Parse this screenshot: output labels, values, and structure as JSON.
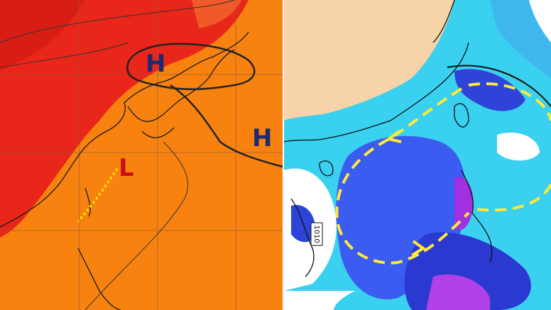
{
  "left_map": {
    "high_1": "H",
    "high_2": "H",
    "low": "L"
  },
  "right_map": {
    "isobar_label": "1010"
  }
}
